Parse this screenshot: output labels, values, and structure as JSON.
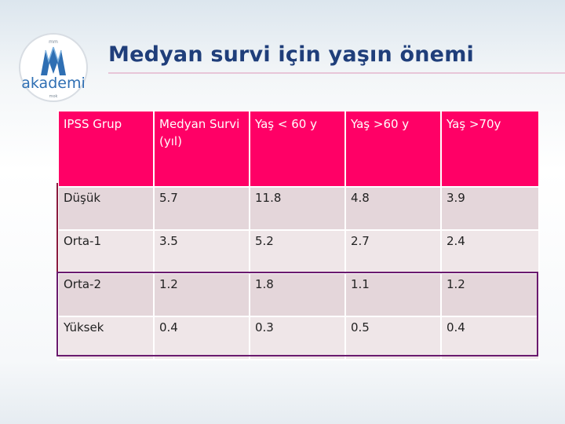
{
  "slide": {
    "title": "Medyan survi için yaşın önemi",
    "logo_text": "akademi",
    "logo_top_text": "mm",
    "logo_bottom_text": "mok"
  },
  "table": {
    "headers": [
      "IPSS  Grup",
      "Medyan Survi (yıl)",
      "Yaş < 60 y",
      "Yaş >60 y",
      "Yaş >70y"
    ],
    "rows": [
      [
        "Düşük",
        "5.7",
        "11.8",
        "4.8",
        "3.9"
      ],
      [
        "Orta-1",
        "3.5",
        "5.2",
        "2.7",
        "2.4"
      ],
      [
        "Orta-2",
        "1.2",
        "1.8",
        "1.1",
        "1.2"
      ],
      [
        "Yüksek",
        "0.4",
        "0.3",
        "0.5",
        "0.4"
      ]
    ]
  },
  "colors": {
    "header_bg": "#ff0066",
    "title": "#1f3e7a",
    "row_light": "#efe6e8",
    "row_dark": "#e4d6da",
    "outline": "#6a1a6e"
  }
}
